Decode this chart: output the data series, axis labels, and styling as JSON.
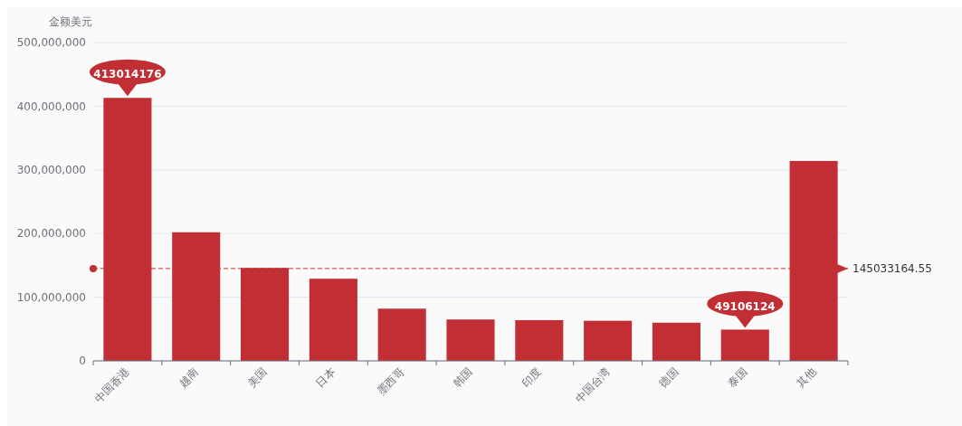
{
  "chart_data": {
    "type": "bar",
    "ylabel": "金额美元",
    "categories": [
      "中国香港",
      "越南",
      "美国",
      "日本",
      "墨西哥",
      "韩国",
      "印度",
      "中国台湾",
      "德国",
      "泰国",
      "其他"
    ],
    "values": [
      413014176,
      202000000,
      146000000,
      129000000,
      82000000,
      65000000,
      64000000,
      63000000,
      60000000,
      49106124,
      314000000
    ],
    "color": "#c12e34",
    "ylim": [
      0,
      500000000
    ],
    "yticks": [
      {
        "value": 0,
        "label": "0"
      },
      {
        "value": 100000000,
        "label": "100,000,000"
      },
      {
        "value": 200000000,
        "label": "200,000,000"
      },
      {
        "value": 300000000,
        "label": "300,000,000"
      },
      {
        "value": 400000000,
        "label": "400,000,000"
      },
      {
        "value": 500000000,
        "label": "500,000,000"
      }
    ],
    "grid": "y",
    "annotations": [
      {
        "text": "413014176",
        "x": "中国香港",
        "y": 413014176
      },
      {
        "text": "49106124",
        "x": "泰国",
        "y": 49106124
      }
    ],
    "ref_lines": [
      {
        "axis": "y",
        "value": 145033164.55,
        "label": "145033164.55",
        "color": "#c12e34",
        "line_style": "dashed"
      }
    ]
  }
}
